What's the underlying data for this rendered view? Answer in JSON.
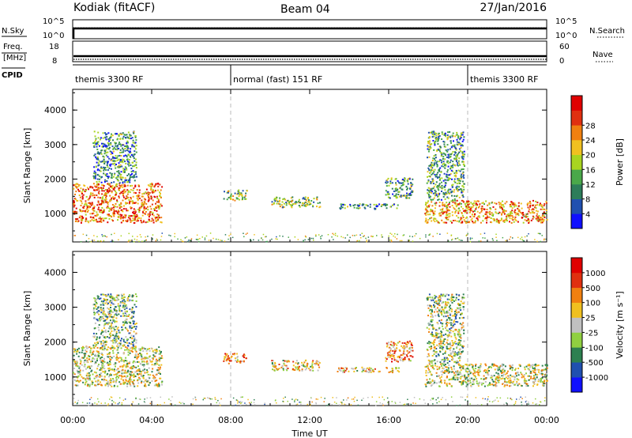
{
  "header": {
    "station": "Kodiak (fitACF)",
    "beam": "Beam 04",
    "date": "27/Jan/2016"
  },
  "strip_panel": {
    "nsky_label": "N.Sky",
    "nsearch_label": "N.Search",
    "left_ticks": [
      "10^5",
      "10^0"
    ],
    "right_ticks": [
      "10^5",
      "10^0"
    ],
    "freq_label_top": "Freq.",
    "freq_label_bottom": "[MHz]",
    "freq_ticks": [
      "18",
      "8"
    ],
    "nave_label": "Nave",
    "nave_ticks": [
      "60",
      "0"
    ],
    "cpid_label": "CPID",
    "cpid_segments": [
      {
        "label": "themis 3300 RF",
        "start": 0,
        "end": 8
      },
      {
        "label": "normal (fast) 151 RF",
        "start": 8,
        "end": 20
      },
      {
        "label": "themis 3300 RF",
        "start": 20,
        "end": 24
      }
    ]
  },
  "chart_data": [
    {
      "type": "heatmap",
      "name": "power-panel",
      "ylabel": "Slant Range [km]",
      "xlim": [
        0,
        24
      ],
      "ylim": [
        180,
        4600
      ],
      "y_ticks": [
        1000,
        2000,
        3000,
        4000
      ],
      "x_tick_hours": [
        0,
        4,
        8,
        12,
        16,
        20,
        24
      ],
      "colorbar": {
        "label": "Power [dB]",
        "ticks": [
          "4",
          "8",
          "12",
          "16",
          "20",
          "24",
          "28"
        ],
        "colors": [
          "#1010ff",
          "#2050b0",
          "#2d7d5a",
          "#4aa84a",
          "#a8d420",
          "#f0c020",
          "#f08010",
          "#e03010",
          "#e00000"
        ]
      },
      "regions": [
        {
          "t0": 0.0,
          "t1": 4.5,
          "r0": 750,
          "r1": 1900,
          "level": 0.75
        },
        {
          "t0": 1.0,
          "t1": 3.2,
          "r0": 1900,
          "r1": 3400,
          "level": 0.3
        },
        {
          "t0": 7.6,
          "t1": 8.8,
          "r0": 1400,
          "r1": 1700,
          "level": 0.45
        },
        {
          "t0": 10.0,
          "t1": 12.5,
          "r0": 1200,
          "r1": 1500,
          "level": 0.45
        },
        {
          "t0": 13.2,
          "t1": 16.5,
          "r0": 1150,
          "r1": 1300,
          "level": 0.3
        },
        {
          "t0": 15.8,
          "t1": 17.2,
          "r0": 1450,
          "r1": 2050,
          "level": 0.35
        },
        {
          "t0": 17.8,
          "t1": 24.0,
          "r0": 750,
          "r1": 1400,
          "level": 0.7
        },
        {
          "t0": 17.9,
          "t1": 19.8,
          "r0": 1400,
          "r1": 3400,
          "level": 0.35
        }
      ]
    },
    {
      "type": "heatmap",
      "name": "velocity-panel",
      "ylabel": "Slant Range [km]",
      "xlabel": "Time UT",
      "xlim": [
        0,
        24
      ],
      "ylim": [
        180,
        4600
      ],
      "y_ticks": [
        1000,
        2000,
        3000,
        4000
      ],
      "x_tick_labels": [
        "00:00",
        "04:00",
        "08:00",
        "12:00",
        "16:00",
        "20:00",
        "00:00"
      ],
      "x_tick_hours": [
        0,
        4,
        8,
        12,
        16,
        20,
        24
      ],
      "colorbar": {
        "label": "Velocity [m s⁻¹]",
        "ticks": [
          "1000",
          "500",
          "100",
          "25",
          "-25",
          "-100",
          "-500",
          "-1000"
        ],
        "colors": [
          "#1010ff",
          "#2050b0",
          "#2d8050",
          "#90d040",
          "#c0c0c0",
          "#f0c020",
          "#f08010",
          "#e03010",
          "#e00000"
        ]
      },
      "regions": [
        {
          "t0": 0.0,
          "t1": 4.5,
          "r0": 750,
          "r1": 1900,
          "level": 0.5
        },
        {
          "t0": 1.0,
          "t1": 3.2,
          "r0": 1900,
          "r1": 3400,
          "level": 0.4
        },
        {
          "t0": 7.6,
          "t1": 8.8,
          "r0": 1400,
          "r1": 1700,
          "level": 0.65
        },
        {
          "t0": 10.0,
          "t1": 12.5,
          "r0": 1200,
          "r1": 1500,
          "level": 0.55
        },
        {
          "t0": 13.2,
          "t1": 16.5,
          "r0": 1150,
          "r1": 1300,
          "level": 0.6
        },
        {
          "t0": 15.8,
          "t1": 17.2,
          "r0": 1450,
          "r1": 2050,
          "level": 0.7
        },
        {
          "t0": 17.8,
          "t1": 24.0,
          "r0": 750,
          "r1": 1400,
          "level": 0.5
        },
        {
          "t0": 17.9,
          "t1": 19.8,
          "r0": 1400,
          "r1": 3400,
          "level": 0.45
        }
      ]
    }
  ]
}
